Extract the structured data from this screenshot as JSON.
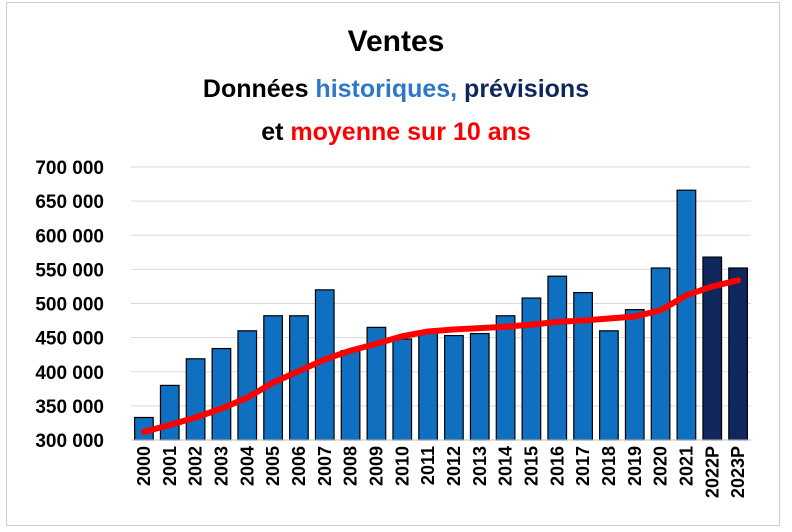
{
  "title": {
    "main": "Ventes",
    "line2_prefix": "Données ",
    "line2_hist": "historiques,",
    "line2_prev": " prévisions",
    "line3_prefix": "et ",
    "line3_avg": "moyenne sur 10 ans"
  },
  "colors": {
    "historical": "#0f6fc0",
    "forecast": "#10275e",
    "average": "#ff0000",
    "bar_border": "#000000",
    "grid": "#d9d9d9"
  },
  "chart_data": {
    "type": "bar",
    "categories": [
      "2000",
      "2001",
      "2002",
      "2003",
      "2004",
      "2005",
      "2006",
      "2007",
      "2008",
      "2009",
      "2010",
      "2011",
      "2012",
      "2013",
      "2014",
      "2015",
      "2016",
      "2017",
      "2018",
      "2019",
      "2020",
      "2021",
      "2022P",
      "2023P"
    ],
    "series": [
      {
        "kind": "historical",
        "values": [
          333000,
          380000,
          419000,
          434000,
          460000,
          482000,
          482000,
          520000,
          431000,
          465000,
          448000,
          460000,
          453000,
          456000,
          482000,
          508000,
          540000,
          516000,
          460000,
          491000,
          552000,
          666000,
          null,
          null
        ]
      },
      {
        "kind": "forecast",
        "values": [
          null,
          null,
          null,
          null,
          null,
          null,
          null,
          null,
          null,
          null,
          null,
          null,
          null,
          null,
          null,
          null,
          null,
          null,
          null,
          null,
          null,
          null,
          568000,
          552000
        ]
      },
      {
        "type": "line",
        "kind": "average",
        "values": [
          312000,
          322000,
          333000,
          346000,
          362000,
          384000,
          401000,
          418000,
          431000,
          441000,
          452000,
          459000,
          462000,
          464000,
          466000,
          469000,
          473000,
          475000,
          478000,
          481000,
          490000,
          512000,
          525000,
          534000
        ]
      }
    ],
    "ylim": [
      300000,
      700000
    ],
    "yticks": [
      "300 000",
      "350 000",
      "400 000",
      "450 000",
      "500 000",
      "550 000",
      "600 000",
      "650 000",
      "700 000"
    ],
    "ytick_values": [
      300000,
      350000,
      400000,
      450000,
      500000,
      550000,
      600000,
      650000,
      700000
    ],
    "grid": true,
    "legend": "none"
  }
}
